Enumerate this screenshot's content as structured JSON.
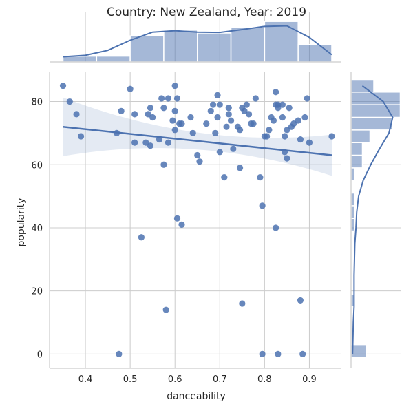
{
  "chart_data": {
    "type": "scatter",
    "title": "Country: New Zealand, Year: 2019",
    "xlabel": "danceability",
    "ylabel": "popularity",
    "xlim": [
      0.32,
      0.97
    ],
    "ylim": [
      -4.5,
      89.5
    ],
    "xticks": [
      0.4,
      0.5,
      0.6,
      0.7,
      0.8,
      0.9
    ],
    "yticks": [
      0,
      20,
      40,
      60,
      80
    ],
    "grid": true,
    "point_color": "#4c72b0",
    "regression": {
      "x0": 0.35,
      "y0": 72.0,
      "x1": 0.95,
      "y1": 63.0
    },
    "marginal_x": {
      "bins": [
        0.35,
        0.425,
        0.5,
        0.575,
        0.65,
        0.725,
        0.8,
        0.875,
        0.95
      ],
      "counts": [
        2,
        2,
        9,
        11,
        10,
        12,
        14,
        6
      ],
      "kde_x": [
        0.35,
        0.4,
        0.45,
        0.5,
        0.55,
        0.6,
        0.65,
        0.7,
        0.75,
        0.8,
        0.85,
        0.9,
        0.95
      ],
      "kde_y": [
        1.8,
        2.3,
        4.0,
        7.5,
        10.3,
        10.8,
        10.3,
        10.2,
        11.2,
        12.3,
        12.5,
        8.5,
        2.5
      ]
    },
    "marginal_y": {
      "bins": [
        -1,
        3,
        7,
        11,
        15,
        19,
        23,
        27,
        31,
        35,
        39,
        43,
        47,
        51,
        55,
        59,
        63,
        67,
        71,
        75,
        79,
        83,
        87
      ],
      "counts": [
        4,
        0,
        0,
        0,
        1,
        0,
        0,
        0,
        0,
        0,
        1,
        1,
        1,
        0,
        1,
        3,
        3,
        5,
        11,
        13,
        13,
        6
      ],
      "kde_y": [
        0,
        5,
        10,
        15,
        20,
        25,
        30,
        35,
        40,
        45,
        50,
        55,
        60,
        65,
        70,
        75,
        80,
        85
      ],
      "kde_x": [
        0.4,
        0.5,
        0.6,
        0.8,
        0.8,
        0.8,
        0.9,
        1.0,
        1.3,
        1.5,
        2.0,
        3.2,
        5.2,
        7.5,
        10.0,
        11.0,
        8.5,
        3.0
      ]
    },
    "points": [
      [
        0.35,
        85
      ],
      [
        0.365,
        80
      ],
      [
        0.38,
        76
      ],
      [
        0.39,
        69
      ],
      [
        0.47,
        70
      ],
      [
        0.48,
        77
      ],
      [
        0.475,
        0
      ],
      [
        0.5,
        84
      ],
      [
        0.51,
        76
      ],
      [
        0.51,
        67
      ],
      [
        0.525,
        37
      ],
      [
        0.535,
        67
      ],
      [
        0.54,
        76
      ],
      [
        0.545,
        66
      ],
      [
        0.545,
        78
      ],
      [
        0.55,
        75
      ],
      [
        0.565,
        68
      ],
      [
        0.57,
        81
      ],
      [
        0.575,
        60
      ],
      [
        0.575,
        78
      ],
      [
        0.58,
        14
      ],
      [
        0.585,
        67
      ],
      [
        0.585,
        81
      ],
      [
        0.595,
        74
      ],
      [
        0.6,
        77
      ],
      [
        0.6,
        85
      ],
      [
        0.6,
        71
      ],
      [
        0.605,
        43
      ],
      [
        0.605,
        81
      ],
      [
        0.61,
        73
      ],
      [
        0.615,
        73
      ],
      [
        0.615,
        41
      ],
      [
        0.635,
        75
      ],
      [
        0.64,
        70
      ],
      [
        0.65,
        63
      ],
      [
        0.655,
        61
      ],
      [
        0.67,
        73
      ],
      [
        0.68,
        77
      ],
      [
        0.685,
        79
      ],
      [
        0.69,
        70
      ],
      [
        0.695,
        75
      ],
      [
        0.695,
        82
      ],
      [
        0.7,
        64
      ],
      [
        0.7,
        79
      ],
      [
        0.71,
        56
      ],
      [
        0.715,
        72
      ],
      [
        0.72,
        78
      ],
      [
        0.72,
        76
      ],
      [
        0.725,
        74
      ],
      [
        0.73,
        65
      ],
      [
        0.74,
        72
      ],
      [
        0.745,
        71
      ],
      [
        0.745,
        59
      ],
      [
        0.75,
        16
      ],
      [
        0.75,
        78
      ],
      [
        0.755,
        77
      ],
      [
        0.76,
        79
      ],
      [
        0.765,
        76
      ],
      [
        0.77,
        73
      ],
      [
        0.775,
        73
      ],
      [
        0.78,
        81
      ],
      [
        0.79,
        56
      ],
      [
        0.795,
        47
      ],
      [
        0.795,
        0
      ],
      [
        0.8,
        69
      ],
      [
        0.805,
        69
      ],
      [
        0.81,
        71
      ],
      [
        0.815,
        75
      ],
      [
        0.82,
        74
      ],
      [
        0.825,
        83
      ],
      [
        0.825,
        79
      ],
      [
        0.825,
        40
      ],
      [
        0.83,
        78
      ],
      [
        0.83,
        79
      ],
      [
        0.83,
        0
      ],
      [
        0.84,
        79
      ],
      [
        0.84,
        75
      ],
      [
        0.845,
        69
      ],
      [
        0.845,
        64
      ],
      [
        0.85,
        62
      ],
      [
        0.85,
        71
      ],
      [
        0.855,
        78
      ],
      [
        0.86,
        72
      ],
      [
        0.865,
        73
      ],
      [
        0.875,
        74
      ],
      [
        0.88,
        68
      ],
      [
        0.88,
        17
      ],
      [
        0.885,
        0
      ],
      [
        0.89,
        75
      ],
      [
        0.895,
        81
      ],
      [
        0.9,
        67
      ],
      [
        0.95,
        69
      ]
    ]
  }
}
